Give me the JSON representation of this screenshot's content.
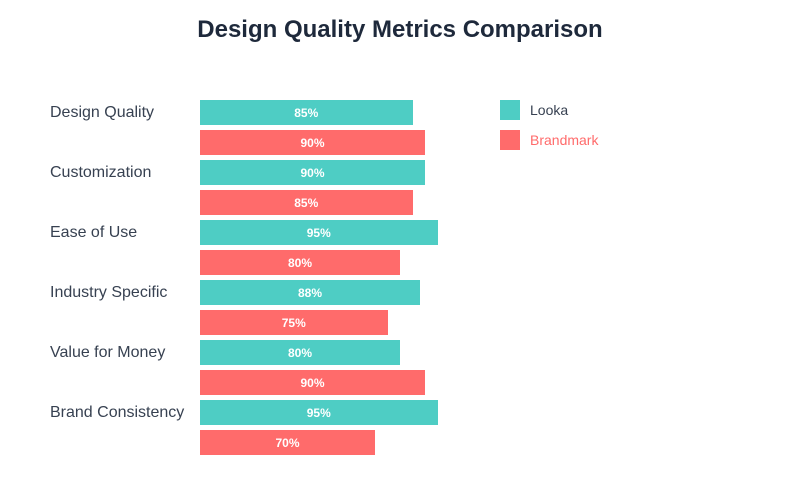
{
  "chart_data": {
    "type": "bar",
    "orientation": "horizontal",
    "title": "Design Quality Metrics Comparison",
    "xlabel": "",
    "ylabel": "",
    "xlim": [
      0,
      100
    ],
    "grid": false,
    "legend_position": "top-right",
    "categories": [
      "Design Quality",
      "Customization",
      "Ease of Use",
      "Industry Specific",
      "Value for Money",
      "Brand Consistency"
    ],
    "series": [
      {
        "name": "Looka",
        "color": "#4ecdc4",
        "values": [
          85,
          90,
          95,
          88,
          80,
          95
        ]
      },
      {
        "name": "Brandmark",
        "color": "#ff6b6b",
        "values": [
          90,
          85,
          80,
          75,
          90,
          70
        ]
      }
    ],
    "value_suffix": "%"
  },
  "legend": [
    {
      "label": "Looka",
      "color": "#4ecdc4",
      "text_color": "#374151"
    },
    {
      "label": "Brandmark",
      "color": "#ff6b6b",
      "text_color": "#ff6b6b"
    }
  ]
}
